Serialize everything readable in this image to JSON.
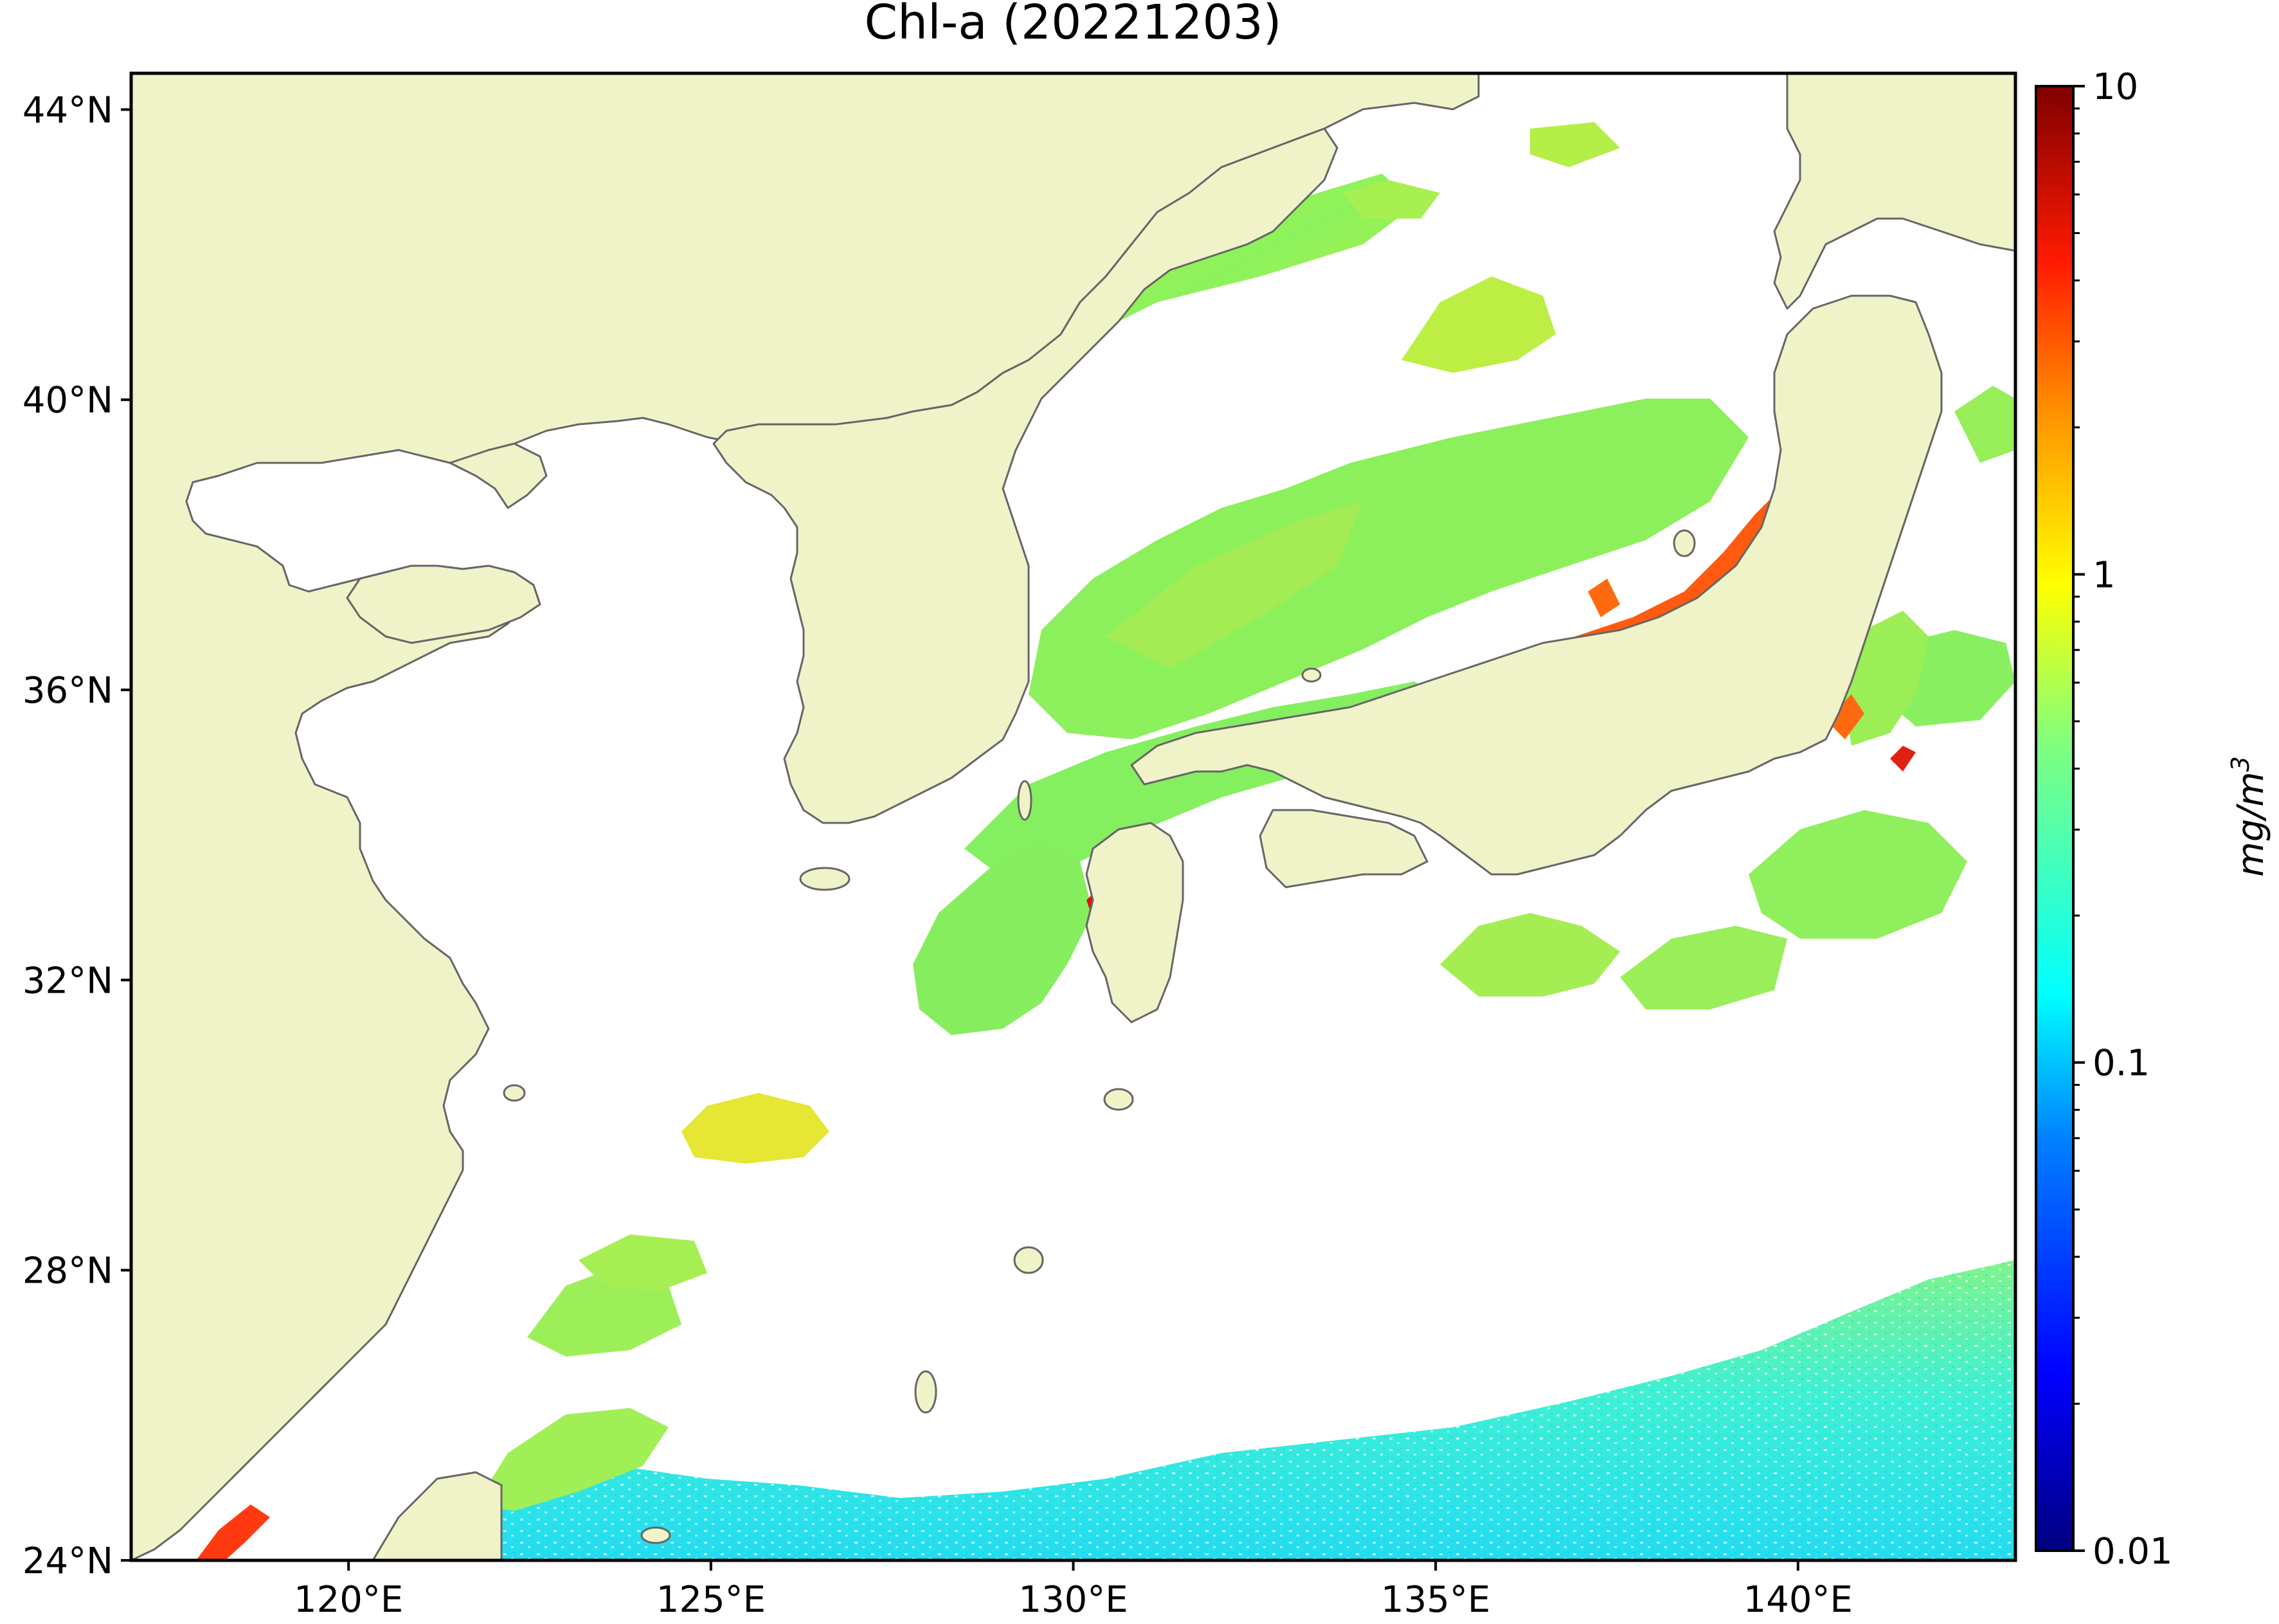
{
  "title": "Chl-a (20221203)",
  "map": {
    "lon_range": [
      117,
      143
    ],
    "lat_range": [
      24,
      44.5
    ],
    "lon_ticks": [
      {
        "value": 120,
        "label": "120°E"
      },
      {
        "value": 125,
        "label": "125°E"
      },
      {
        "value": 130,
        "label": "130°E"
      },
      {
        "value": 135,
        "label": "135°E"
      },
      {
        "value": 140,
        "label": "140°E"
      }
    ],
    "lat_ticks": [
      {
        "value": 44,
        "label": "44°N"
      },
      {
        "value": 40,
        "label": "40°N"
      },
      {
        "value": 36,
        "label": "36°N"
      },
      {
        "value": 32,
        "label": "32°N"
      },
      {
        "value": 28,
        "label": "28°N"
      },
      {
        "value": 24,
        "label": "24°N"
      }
    ],
    "colors": {
      "land": "#f0f2c8",
      "coastline": "#666666",
      "no_data": "#ffffff",
      "frame": "#000000"
    }
  },
  "colorbar": {
    "label_base": "mg/m",
    "label_sup": "3",
    "scale": "log",
    "range": [
      0.01,
      10
    ],
    "ticks": [
      {
        "value": 10,
        "label": "10"
      },
      {
        "value": 1,
        "label": "1"
      },
      {
        "value": 0.1,
        "label": "0.1"
      },
      {
        "value": 0.01,
        "label": "0.01"
      }
    ],
    "colormap": [
      "#00007f",
      "#0000ff",
      "#007fff",
      "#00ffff",
      "#7fff7f",
      "#ffff00",
      "#ff7f00",
      "#ff0000",
      "#7f0000"
    ]
  }
}
